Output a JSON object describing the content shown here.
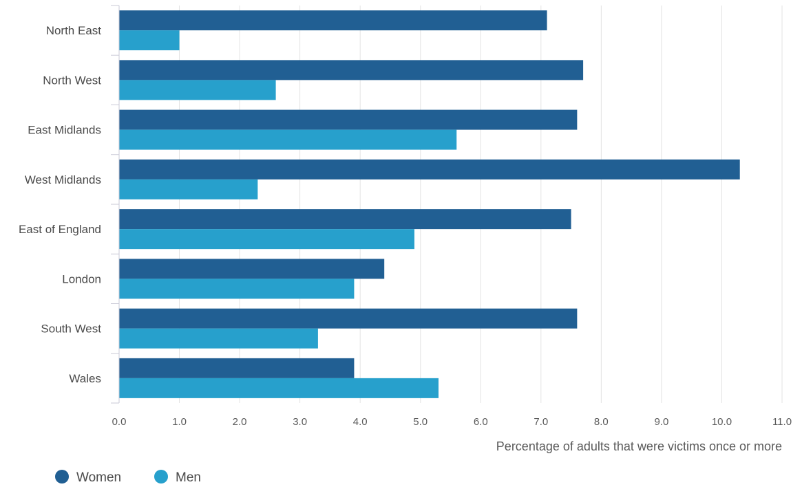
{
  "chart_data": {
    "type": "bar",
    "orientation": "horizontal",
    "categories": [
      "North East",
      "North West",
      "East Midlands",
      "West Midlands",
      "East of England",
      "London",
      "South West",
      "Wales"
    ],
    "series": [
      {
        "name": "Women",
        "color": "#215f93",
        "values": [
          7.1,
          7.7,
          7.6,
          10.3,
          7.5,
          4.4,
          7.6,
          3.9
        ]
      },
      {
        "name": "Men",
        "color": "#27a0cc",
        "values": [
          1.0,
          2.6,
          5.6,
          2.3,
          4.9,
          3.9,
          3.3,
          5.3
        ]
      }
    ],
    "xlabel": "Percentage of adults that were victims once or more",
    "xlim": [
      0,
      11
    ],
    "xticks": [
      "0.0",
      "1.0",
      "2.0",
      "3.0",
      "4.0",
      "5.0",
      "6.0",
      "7.0",
      "8.0",
      "9.0",
      "10.0",
      "11.0"
    ],
    "grid": "vertical",
    "legend_position": "bottom-left"
  }
}
